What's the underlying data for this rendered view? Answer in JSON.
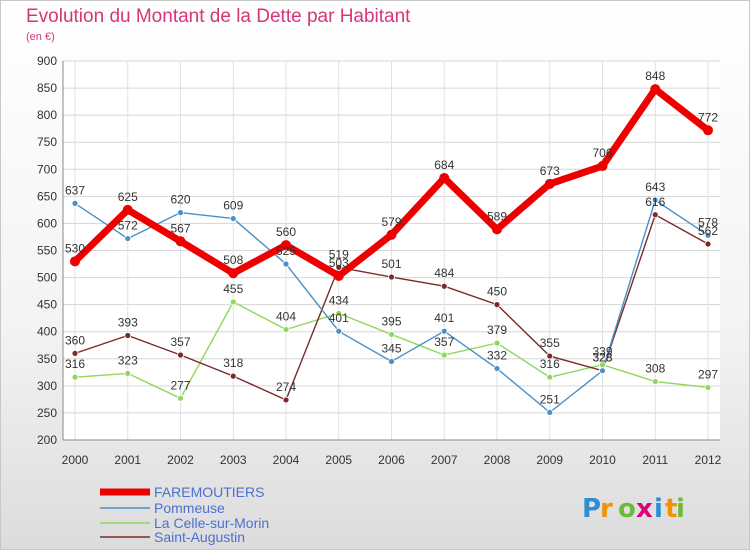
{
  "chart_data": {
    "type": "line",
    "title": "Evolution du Montant de la Dette par Habitant",
    "subtitle": "(en €)",
    "x": [
      "2000",
      "2001",
      "2002",
      "2003",
      "2004",
      "2005",
      "2006",
      "2007",
      "2008",
      "2009",
      "2010",
      "2011",
      "2012"
    ],
    "ylim": [
      200,
      900
    ],
    "yticks": [
      200,
      250,
      300,
      350,
      400,
      450,
      500,
      550,
      600,
      650,
      700,
      750,
      800,
      850,
      900
    ],
    "grid": true,
    "legend_position": "bottom-left",
    "series": [
      {
        "name": "FAREMOUTIERS",
        "color": "#ee0000",
        "values": [
          530,
          625,
          567,
          508,
          560,
          503,
          579,
          684,
          589,
          673,
          706,
          848,
          772
        ]
      },
      {
        "name": "Pommeuse",
        "color": "#4a90c8",
        "values": [
          637,
          572,
          620,
          609,
          525,
          401,
          345,
          401,
          332,
          251,
          328,
          643,
          578
        ]
      },
      {
        "name": "La Celle-sur-Morin",
        "color": "#8ed85a",
        "values": [
          316,
          323,
          277,
          455,
          404,
          434,
          395,
          357,
          379,
          316,
          339,
          308,
          297
        ]
      },
      {
        "name": "Saint-Augustin",
        "color": "#7a2a2a",
        "values": [
          360,
          393,
          357,
          318,
          274,
          519,
          501,
          484,
          450,
          355,
          328,
          616,
          562
        ]
      }
    ]
  },
  "logo": {
    "text": "Proxiti",
    "colors": [
      "#2d8fd1",
      "#f39200",
      "#6dbb3b",
      "#e2007a"
    ]
  }
}
